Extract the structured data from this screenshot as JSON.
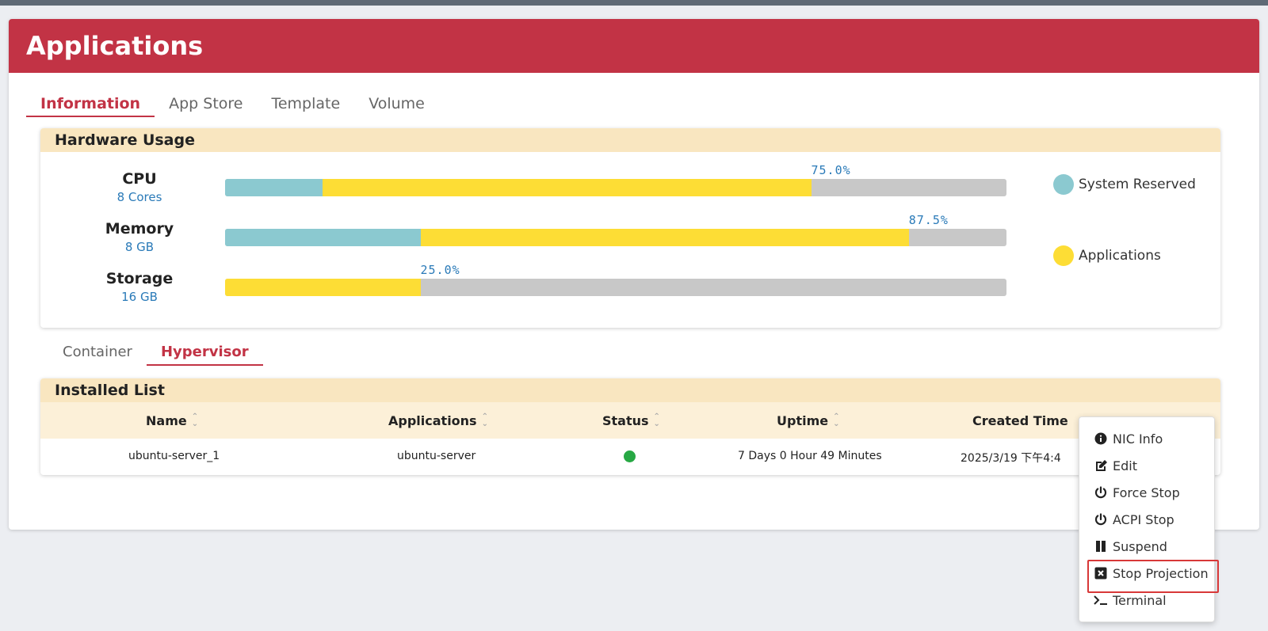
{
  "page": {
    "title": "Applications"
  },
  "tabs": [
    {
      "label": "Information",
      "active": true
    },
    {
      "label": "App Store",
      "active": false
    },
    {
      "label": "Template",
      "active": false
    },
    {
      "label": "Volume",
      "active": false
    }
  ],
  "hardware": {
    "title": "Hardware Usage",
    "rows": [
      {
        "name": "CPU",
        "value": "8 Cores",
        "percent_label": "75.0%",
        "system_reserved": 0.125,
        "applications": 0.625
      },
      {
        "name": "Memory",
        "value": "8 GB",
        "percent_label": "87.5%",
        "system_reserved": 0.25,
        "applications": 0.625
      },
      {
        "name": "Storage",
        "value": "16 GB",
        "percent_label": "25.0%",
        "system_reserved": 0.0,
        "applications": 0.25
      }
    ],
    "legend": [
      {
        "label": "System Reserved",
        "color": "#8bc9d0"
      },
      {
        "label": "Applications",
        "color": "#fddd35"
      }
    ]
  },
  "subtabs": [
    {
      "label": "Container",
      "active": false
    },
    {
      "label": "Hypervisor",
      "active": true
    }
  ],
  "installed": {
    "title": "Installed List",
    "columns": [
      "Name",
      "Applications",
      "Status",
      "Uptime",
      "Created Time"
    ],
    "rows": [
      {
        "name": "ubuntu-server_1",
        "application": "ubuntu-server",
        "status": "running",
        "status_color": "#27a844",
        "uptime": "7 Days 0 Hour 49 Minutes",
        "created": "2025/3/19 下午4:4"
      }
    ]
  },
  "context_menu": {
    "items": [
      {
        "label": "NIC Info",
        "icon": "info-circle-icon"
      },
      {
        "label": "Edit",
        "icon": "edit-icon"
      },
      {
        "label": "Force Stop",
        "icon": "power-icon"
      },
      {
        "label": "ACPI Stop",
        "icon": "power-icon"
      },
      {
        "label": "Suspend",
        "icon": "pause-icon"
      },
      {
        "label": "Stop Projection",
        "icon": "close-box-icon",
        "highlighted": true
      },
      {
        "label": "Terminal",
        "icon": "terminal-icon"
      }
    ]
  },
  "colors": {
    "header": "#c23345",
    "accent": "#c23345",
    "card_header": "#f9e6c0",
    "percent_text": "#2a7ab8",
    "bar_background": "#c8c8c8"
  }
}
